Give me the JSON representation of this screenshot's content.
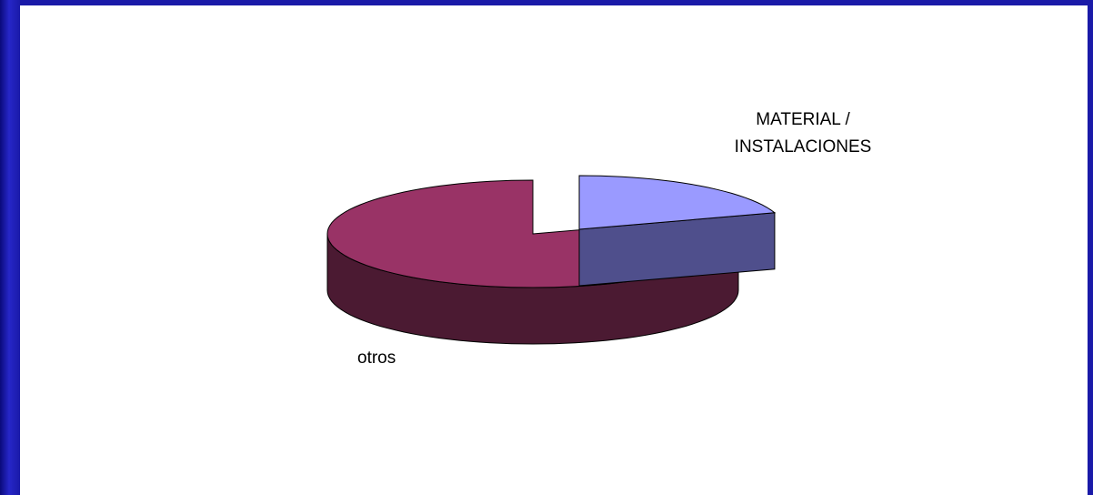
{
  "chart_data": {
    "type": "pie",
    "three_d": true,
    "exploded": true,
    "slices": [
      {
        "label_lines": [
          "MATERIAL /",
          "INSTALACIONES"
        ],
        "value": 20,
        "color_top": "#9a9aff",
        "color_side": "#4f4f8c"
      },
      {
        "label_lines": [
          "otros"
        ],
        "value": 80,
        "color_top": "#993366",
        "color_side": "#4b1a32"
      }
    ]
  },
  "colors": {
    "frame": "#1a1a9e",
    "panel": "#ffffff",
    "outline": "#000000"
  }
}
